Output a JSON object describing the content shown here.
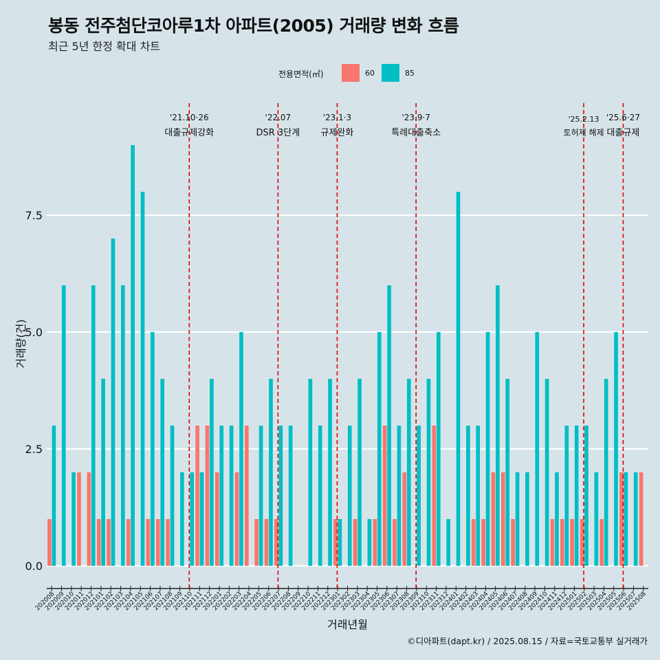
{
  "title": "봉동 전주첨단코아루1차 아파트(2005) 거래량 변화 흐름",
  "subtitle": "최근 5년 한정 확대 차트",
  "credit": "©디아파트(dapt.kr) / 2025.08.15 / 자료=국토교통부 실거래가",
  "legend": {
    "title": "전용면적(㎡)",
    "items": [
      {
        "label": "60",
        "color": "#f8766d"
      },
      {
        "label": "85",
        "color": "#00bfc4"
      }
    ]
  },
  "colors": {
    "background": "#d6e4ea",
    "grid": "#ffffff",
    "event_line": "#e00000"
  },
  "chart_data": {
    "type": "bar",
    "stacked": false,
    "grouped": true,
    "xlabel": "거래년월",
    "ylabel": "거래량(건)",
    "ylim": [
      0,
      9
    ],
    "yticks": [
      0.0,
      2.5,
      5.0,
      7.5
    ],
    "ytick_labels": [
      "0.0",
      "2.5",
      "5.0",
      "7.5"
    ],
    "grid": true,
    "legend_position": "top",
    "categories": [
      "202008",
      "202009",
      "202010",
      "202011",
      "202012",
      "202101",
      "202102",
      "202103",
      "202104",
      "202105",
      "202106",
      "202107",
      "202108",
      "202109",
      "202110",
      "202111",
      "202112",
      "202201",
      "202202",
      "202203",
      "202204",
      "202205",
      "202206",
      "202207",
      "202208",
      "202209",
      "202210",
      "202211",
      "202212",
      "202301",
      "202302",
      "202303",
      "202304",
      "202305",
      "202306",
      "202307",
      "202308",
      "202309",
      "202310",
      "202311",
      "202312",
      "202401",
      "202402",
      "202403",
      "202404",
      "202405",
      "202406",
      "202407",
      "202408",
      "202409",
      "202410",
      "202411",
      "202412",
      "202501",
      "202502",
      "202503",
      "202504",
      "202505",
      "202506",
      "202507",
      "202508"
    ],
    "series": [
      {
        "name": "60",
        "color": "#f8766d",
        "values": [
          1,
          0,
          0,
          2,
          2,
          1,
          1,
          0,
          1,
          0,
          1,
          1,
          1,
          0,
          0,
          3,
          3,
          2,
          0,
          2,
          3,
          1,
          1,
          1,
          0,
          0,
          0,
          0,
          0,
          1,
          0,
          1,
          0,
          1,
          3,
          1,
          2,
          0,
          0,
          3,
          0,
          0,
          0,
          1,
          1,
          2,
          2,
          1,
          0,
          0,
          0,
          1,
          1,
          1,
          1,
          0,
          1,
          0,
          2,
          0,
          2
        ]
      },
      {
        "name": "85",
        "color": "#00bfc4",
        "values": [
          3,
          6,
          2,
          0,
          6,
          4,
          7,
          6,
          9,
          8,
          5,
          4,
          3,
          2,
          2,
          2,
          4,
          3,
          3,
          5,
          0,
          3,
          4,
          3,
          3,
          0,
          4,
          3,
          4,
          1,
          3,
          4,
          1,
          5,
          6,
          3,
          4,
          3,
          4,
          5,
          1,
          8,
          3,
          3,
          5,
          6,
          4,
          2,
          2,
          5,
          4,
          2,
          3,
          3,
          3,
          2,
          4,
          5,
          2,
          2,
          0
        ]
      }
    ],
    "annotations": [
      {
        "category": "202110",
        "date": "'21.10·26",
        "text": "대출규제강화"
      },
      {
        "category": "202207",
        "date": "'22.07",
        "text": "DSR 3단계"
      },
      {
        "category": "202301",
        "date": "'23.1·3",
        "text": "규제완화"
      },
      {
        "category": "202309",
        "date": "'23.9·7",
        "text": "특례대출축소"
      },
      {
        "category": "202502",
        "date": "'25.2.13",
        "text": "토허제 해제"
      },
      {
        "category": "202506",
        "date": "'25.6·27",
        "text": "대출규제"
      }
    ]
  }
}
